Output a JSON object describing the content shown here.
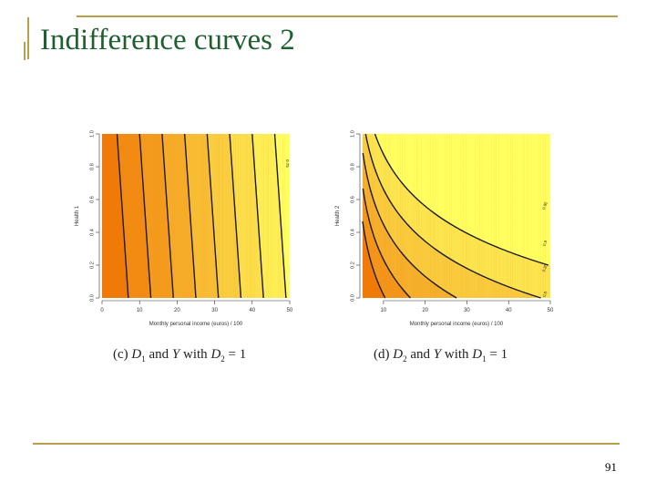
{
  "slide": {
    "title": "Indifference curves 2",
    "page_number": "91"
  },
  "chart_data": [
    {
      "type": "heatmap",
      "panel": "c",
      "caption_prefix": "(c)",
      "caption_math": "D1 and Y with D2 = 1",
      "xlabel": "Monthly personal income (euros) / 100",
      "ylabel": "Health 1",
      "x_ticks": [
        "0",
        "10",
        "20",
        "30",
        "40",
        "50"
      ],
      "y_ticks": [
        "0.0",
        "0.2",
        "0.4",
        "0.6",
        "0.8",
        "1.0"
      ],
      "xlim": [
        0,
        50
      ],
      "ylim": [
        0,
        1
      ],
      "contour_labels": [
        "0.75"
      ],
      "colors": {
        "low": "#f07a08",
        "high": "#ffff60"
      }
    },
    {
      "type": "heatmap",
      "panel": "d",
      "caption_prefix": "(d)",
      "caption_math": "D2 and Y with D1 = 1",
      "xlabel": "Monthly personal income (euros) / 100",
      "ylabel": "Health 2",
      "x_ticks": [
        "10",
        "20",
        "30",
        "40",
        "50"
      ],
      "y_ticks": [
        "0.0",
        "0.2",
        "0.4",
        "0.6",
        "0.8",
        "1.0"
      ],
      "xlim": [
        5,
        50
      ],
      "ylim": [
        0,
        1
      ],
      "contour_labels": [
        "0.8",
        "0.85",
        "0.9",
        "0.95"
      ],
      "colors": {
        "low": "#f07a08",
        "high": "#ffff60"
      }
    }
  ]
}
